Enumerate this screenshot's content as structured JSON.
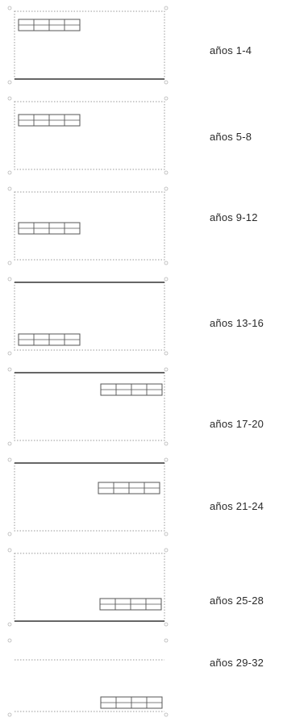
{
  "panels": [
    {
      "label": "años 1-4",
      "block_position": "top-left",
      "solid_edge": "bottom"
    },
    {
      "label": "años 5-8",
      "block_position": "upper-left",
      "solid_edge": "none"
    },
    {
      "label": "años 9-12",
      "block_position": "middle-left",
      "solid_edge": "none"
    },
    {
      "label": "años 13-16",
      "block_position": "bottom-left",
      "solid_edge": "top"
    },
    {
      "label": "años 17-20",
      "block_position": "top-right",
      "solid_edge": "top"
    },
    {
      "label": "años 21-24",
      "block_position": "upper-right",
      "solid_edge": "top"
    },
    {
      "label": "años 25-28",
      "block_position": "lower-right",
      "solid_edge": "bottom"
    },
    {
      "label": "años 29-32",
      "block_position": "bottom-right",
      "solid_edge": "none",
      "frame": "partial"
    }
  ],
  "colors": {
    "frame_dotted": "#9a9a9a",
    "frame_solid": "#333333",
    "block_stroke": "#555555",
    "label_text": "#2a2a2a"
  }
}
